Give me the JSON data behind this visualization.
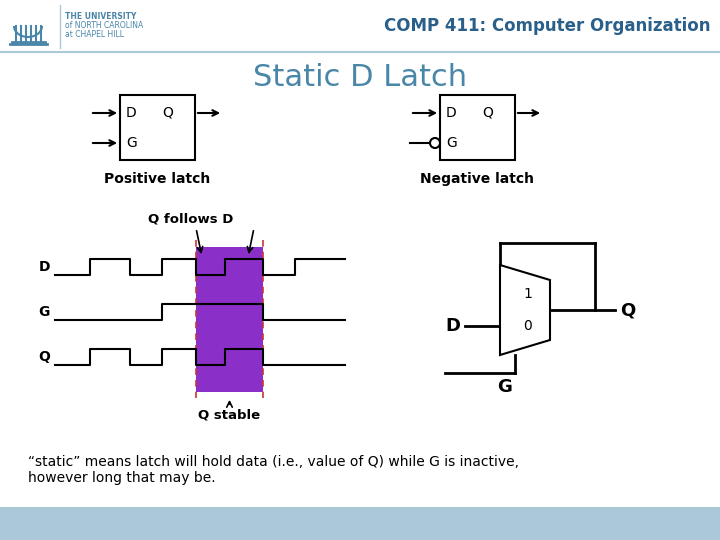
{
  "title": "Static D Latch",
  "header_text": "COMP 411: Computer Organization",
  "univ_line1": "THE UNIVERSITY",
  "univ_line2": "of NORTH CAROLINA",
  "univ_line3": "at CHAPEL HILL",
  "pos_latch_label": "Positive latch",
  "neg_latch_label": "Negative latch",
  "q_follows_d": "Q follows D",
  "q_stable": "Q stable",
  "footer_text": "“static” means latch will hold data (i.e., value of Q) while G is inactive,\nhowever long that may be.",
  "title_color": "#4a86a8",
  "header_color": "#2a5f8a",
  "bg_color": "#ffffff",
  "footer_bg": "#aac8d8",
  "purple_color": "#8b2fc9",
  "dashed_color": "#cc3333",
  "lw": 1.5
}
